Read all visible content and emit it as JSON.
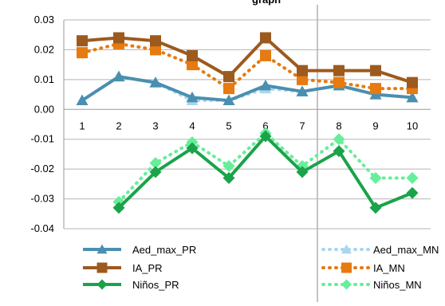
{
  "chart_data": {
    "type": "line",
    "title": "graph",
    "x": [
      1,
      2,
      3,
      4,
      5,
      6,
      7,
      8,
      9,
      10
    ],
    "ylim": [
      -0.04,
      0.03
    ],
    "yticks": [
      "0.03",
      "0.02",
      "0.01",
      "0.00",
      "-0.01",
      "-0.02",
      "-0.03",
      "-0.04"
    ],
    "ytick_values": [
      0.03,
      0.02,
      0.01,
      0.0,
      -0.01,
      -0.02,
      -0.03,
      -0.04
    ],
    "xtick_labels": [
      "1",
      "2",
      "3",
      "4",
      "5",
      "6",
      "7",
      "8",
      "9",
      "10"
    ],
    "grid": "horizontal",
    "legend_position": "bottom",
    "series": [
      {
        "name": "Aed_max_PR",
        "color": "#4a8fb0",
        "style": "solid",
        "marker": "triangle",
        "values": [
          0.003,
          0.011,
          0.009,
          0.004,
          0.003,
          0.008,
          0.006,
          0.008,
          0.005,
          0.004
        ]
      },
      {
        "name": "Aed_max_MN",
        "color": "#a9d6ee",
        "style": "dotted",
        "marker": "triangle",
        "values": [
          0.003,
          0.011,
          0.009,
          0.003,
          0.003,
          0.007,
          0.006,
          0.008,
          0.005,
          0.004
        ]
      },
      {
        "name": "IA_PR",
        "color": "#9c5a1e",
        "style": "solid",
        "marker": "square",
        "values": [
          0.023,
          0.024,
          0.023,
          0.018,
          0.011,
          0.024,
          0.013,
          0.013,
          0.013,
          0.009
        ]
      },
      {
        "name": "IA_MN",
        "color": "#e77a10",
        "style": "dotted",
        "marker": "square",
        "values": [
          0.019,
          0.022,
          0.02,
          0.015,
          0.007,
          0.018,
          0.01,
          0.009,
          0.007,
          0.007
        ]
      },
      {
        "name": "Niños_PR",
        "color": "#1aa34a",
        "style": "solid",
        "marker": "diamond",
        "values": [
          null,
          -0.033,
          -0.021,
          -0.013,
          -0.023,
          -0.009,
          -0.021,
          -0.014,
          -0.033,
          -0.028
        ]
      },
      {
        "name": "Niños_MN",
        "color": "#66ee99",
        "style": "dotted",
        "marker": "diamond",
        "values": [
          null,
          -0.031,
          -0.018,
          -0.011,
          -0.019,
          -0.008,
          -0.019,
          -0.01,
          -0.023,
          -0.023
        ]
      }
    ]
  }
}
